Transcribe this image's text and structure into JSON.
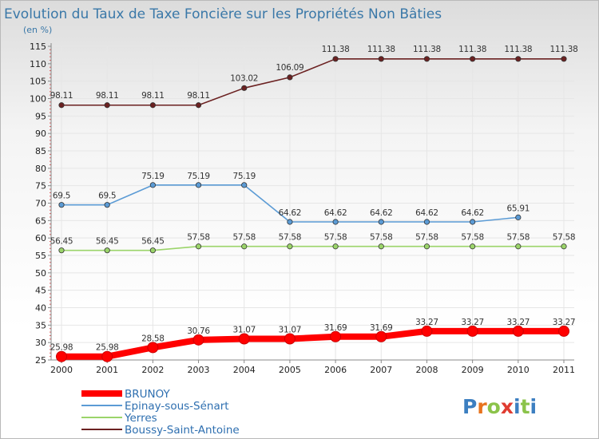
{
  "chart_data": {
    "type": "line",
    "title": "Evolution du Taux de Taxe Foncière sur les Propriétés Non Bâties",
    "subtitle": "(en %)",
    "xlabel": "",
    "ylabel": "(en %)",
    "ylim": [
      25,
      115
    ],
    "ytick_step": 5,
    "grid": true,
    "legend_position": "bottom-left",
    "x": [
      "2000",
      "2001",
      "2002",
      "2003",
      "2004",
      "2005",
      "2006",
      "2007",
      "2008",
      "2009",
      "2010",
      "2011"
    ],
    "series": [
      {
        "name": "Boussy-Saint-Antoine",
        "color": "#6b2121",
        "values": [
          98.11,
          98.11,
          98.11,
          98.11,
          103.02,
          106.09,
          111.38,
          111.38,
          111.38,
          111.38,
          111.38,
          111.38
        ],
        "labels": [
          "98.11",
          "98.11",
          "98.11",
          "98.11",
          "103.02",
          "106.09",
          "111.38",
          "111.38",
          "111.38",
          "111.38",
          "111.38",
          "111.38"
        ]
      },
      {
        "name": "Epinay-sous-Sénart",
        "color": "#5b9bd5",
        "values": [
          69.5,
          69.5,
          75.19,
          75.19,
          75.19,
          64.62,
          64.62,
          64.62,
          64.62,
          64.62,
          65.91,
          null
        ],
        "labels": [
          "69.5",
          "69.5",
          "75.19",
          "75.19",
          "75.19",
          "64.62",
          "64.62",
          "64.62",
          "64.62",
          "64.62",
          "65.91",
          null
        ]
      },
      {
        "name": "Yerres",
        "color": "#9bd46a",
        "values": [
          56.45,
          56.45,
          56.45,
          57.58,
          57.58,
          57.58,
          57.58,
          57.58,
          57.58,
          57.58,
          57.58,
          57.58
        ],
        "labels": [
          "56.45",
          "56.45",
          "56.45",
          "57.58",
          "57.58",
          "57.58",
          "57.58",
          "57.58",
          "57.58",
          "57.58",
          "57.58",
          "57.58"
        ]
      },
      {
        "name": "BRUNOY",
        "color": "#ff0000",
        "values": [
          25.98,
          25.98,
          28.58,
          30.76,
          31.07,
          31.07,
          31.69,
          31.69,
          33.27,
          33.27,
          33.27,
          33.27
        ],
        "labels": [
          "25.98",
          "25.98",
          "28.58",
          "30.76",
          "31.07",
          "31.07",
          "31.69",
          "31.69",
          "33.27",
          "33.27",
          "33.27",
          "33.27"
        ]
      }
    ],
    "legend": [
      "BRUNOY",
      "Epinay-sous-Sénart",
      "Yerres",
      "Boussy-Saint-Antoine"
    ]
  },
  "logo": {
    "text": "Proxiti",
    "letters": [
      "P",
      "r",
      "o",
      "x",
      "i",
      "t",
      "i"
    ]
  },
  "colors": {
    "title": "#3a78a8",
    "axis": "#888888",
    "grid": "#e6e6e6",
    "logo": [
      "#3c7fc1",
      "#e8731e",
      "#8bc34a",
      "#e03c31",
      "#3c7fc1",
      "#8bc34a",
      "#3c7fc1"
    ]
  }
}
